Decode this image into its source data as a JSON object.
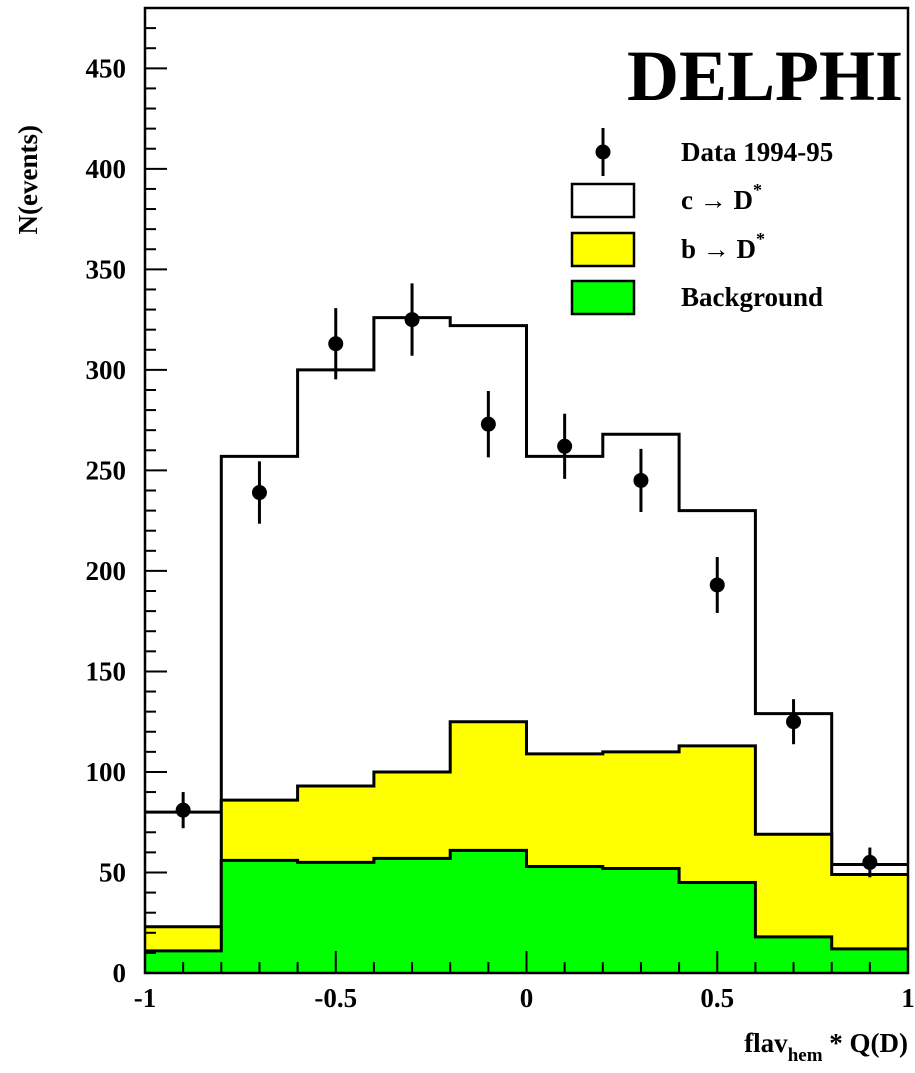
{
  "chart_data": {
    "type": "bar",
    "title": "DELPHI",
    "xlabel": {
      "main": "flav",
      "sub": "hem",
      "rest": " * Q(D)"
    },
    "ylabel": "N(events)",
    "xlim": [
      -1,
      1
    ],
    "ylim": [
      0,
      480
    ],
    "x_ticks": [
      -1,
      -0.5,
      0,
      0.5,
      1
    ],
    "x_tick_labels": [
      "-1",
      "-0.5",
      "0",
      "0.5",
      "1"
    ],
    "y_ticks": [
      0,
      50,
      100,
      150,
      200,
      250,
      300,
      350,
      400,
      450
    ],
    "y_tick_labels": [
      "0",
      "50",
      "100",
      "150",
      "200",
      "250",
      "300",
      "350",
      "400",
      "450"
    ],
    "bin_edges": [
      -1,
      -0.8,
      -0.6,
      -0.4,
      -0.2,
      0,
      0.2,
      0.4,
      0.6,
      0.8,
      1
    ],
    "series": [
      {
        "name": "Background",
        "color": "#00ff00",
        "values": [
          11,
          56,
          55,
          57,
          61,
          53,
          52,
          45,
          18,
          12
        ]
      },
      {
        "name": "b → D*",
        "color": "#ffff00",
        "values": [
          23,
          86,
          93,
          100,
          125,
          109,
          110,
          113,
          69,
          49
        ]
      },
      {
        "name": "c → D*",
        "color": "#ffffff",
        "values": [
          80,
          257,
          300,
          326,
          322,
          257,
          268,
          230,
          129,
          54
        ]
      }
    ],
    "data_points": {
      "name": "Data 1994-95",
      "x": [
        -0.9,
        -0.7,
        -0.5,
        -0.3,
        -0.1,
        0.1,
        0.3,
        0.5,
        0.7,
        0.9
      ],
      "y": [
        81,
        239,
        313,
        325,
        273,
        262,
        245,
        193,
        125,
        55
      ],
      "err": [
        9,
        15.5,
        17.7,
        18,
        16.5,
        16.2,
        15.7,
        13.9,
        11.2,
        7.4
      ]
    },
    "legend": [
      {
        "label_main": "Data 1994-95",
        "label_sup": "",
        "kind": "marker"
      },
      {
        "label_main": "c → D",
        "label_sup": "*",
        "kind": "box",
        "color": "#ffffff"
      },
      {
        "label_main": "b → D",
        "label_sup": "*",
        "kind": "box",
        "color": "#ffff00"
      },
      {
        "label_main": "Background",
        "label_sup": "",
        "kind": "box",
        "color": "#00ff00"
      }
    ],
    "legend_position": "top-right",
    "grid": false
  }
}
